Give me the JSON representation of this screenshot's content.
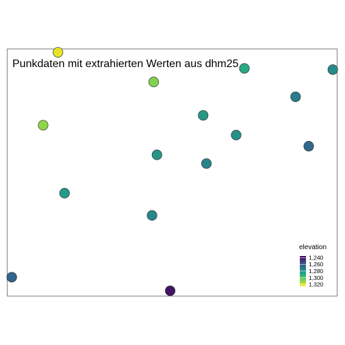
{
  "chart_data": {
    "type": "scatter",
    "title": "Punkdaten mit extrahierten Werten aus dhm25",
    "xlabel": "",
    "ylabel": "",
    "grid": false,
    "legend": {
      "title": "elevation",
      "placement": "bottom-right",
      "ticks": [
        "1,240",
        "1,260",
        "1,280",
        "1,300",
        "1,320"
      ],
      "range": [
        1235,
        1325
      ]
    },
    "colors": {
      "frame": "#7f7f7f",
      "point_outline": "#333333",
      "scale": [
        "#440154",
        "#414487",
        "#2a788e",
        "#22a884",
        "#7ad151",
        "#fde725"
      ]
    },
    "xlim": [
      0,
      100
    ],
    "ylim": [
      0,
      100
    ],
    "points": [
      {
        "x": 15.5,
        "y": 98.5,
        "elevation": 1322
      },
      {
        "x": 72.0,
        "y": 92.0,
        "elevation": 1290
      },
      {
        "x": 98.8,
        "y": 91.5,
        "elevation": 1278
      },
      {
        "x": 44.5,
        "y": 86.5,
        "elevation": 1308
      },
      {
        "x": 87.5,
        "y": 80.5,
        "elevation": 1273
      },
      {
        "x": 59.5,
        "y": 73.0,
        "elevation": 1283
      },
      {
        "x": 11.0,
        "y": 69.0,
        "elevation": 1310
      },
      {
        "x": 69.5,
        "y": 65.0,
        "elevation": 1280
      },
      {
        "x": 91.5,
        "y": 60.5,
        "elevation": 1265
      },
      {
        "x": 45.5,
        "y": 57.0,
        "elevation": 1282
      },
      {
        "x": 60.5,
        "y": 53.5,
        "elevation": 1276
      },
      {
        "x": 17.5,
        "y": 41.5,
        "elevation": 1284
      },
      {
        "x": 44.0,
        "y": 32.5,
        "elevation": 1277
      },
      {
        "x": 1.5,
        "y": 7.5,
        "elevation": 1264
      },
      {
        "x": 49.5,
        "y": 2.0,
        "elevation": 1240
      }
    ]
  }
}
